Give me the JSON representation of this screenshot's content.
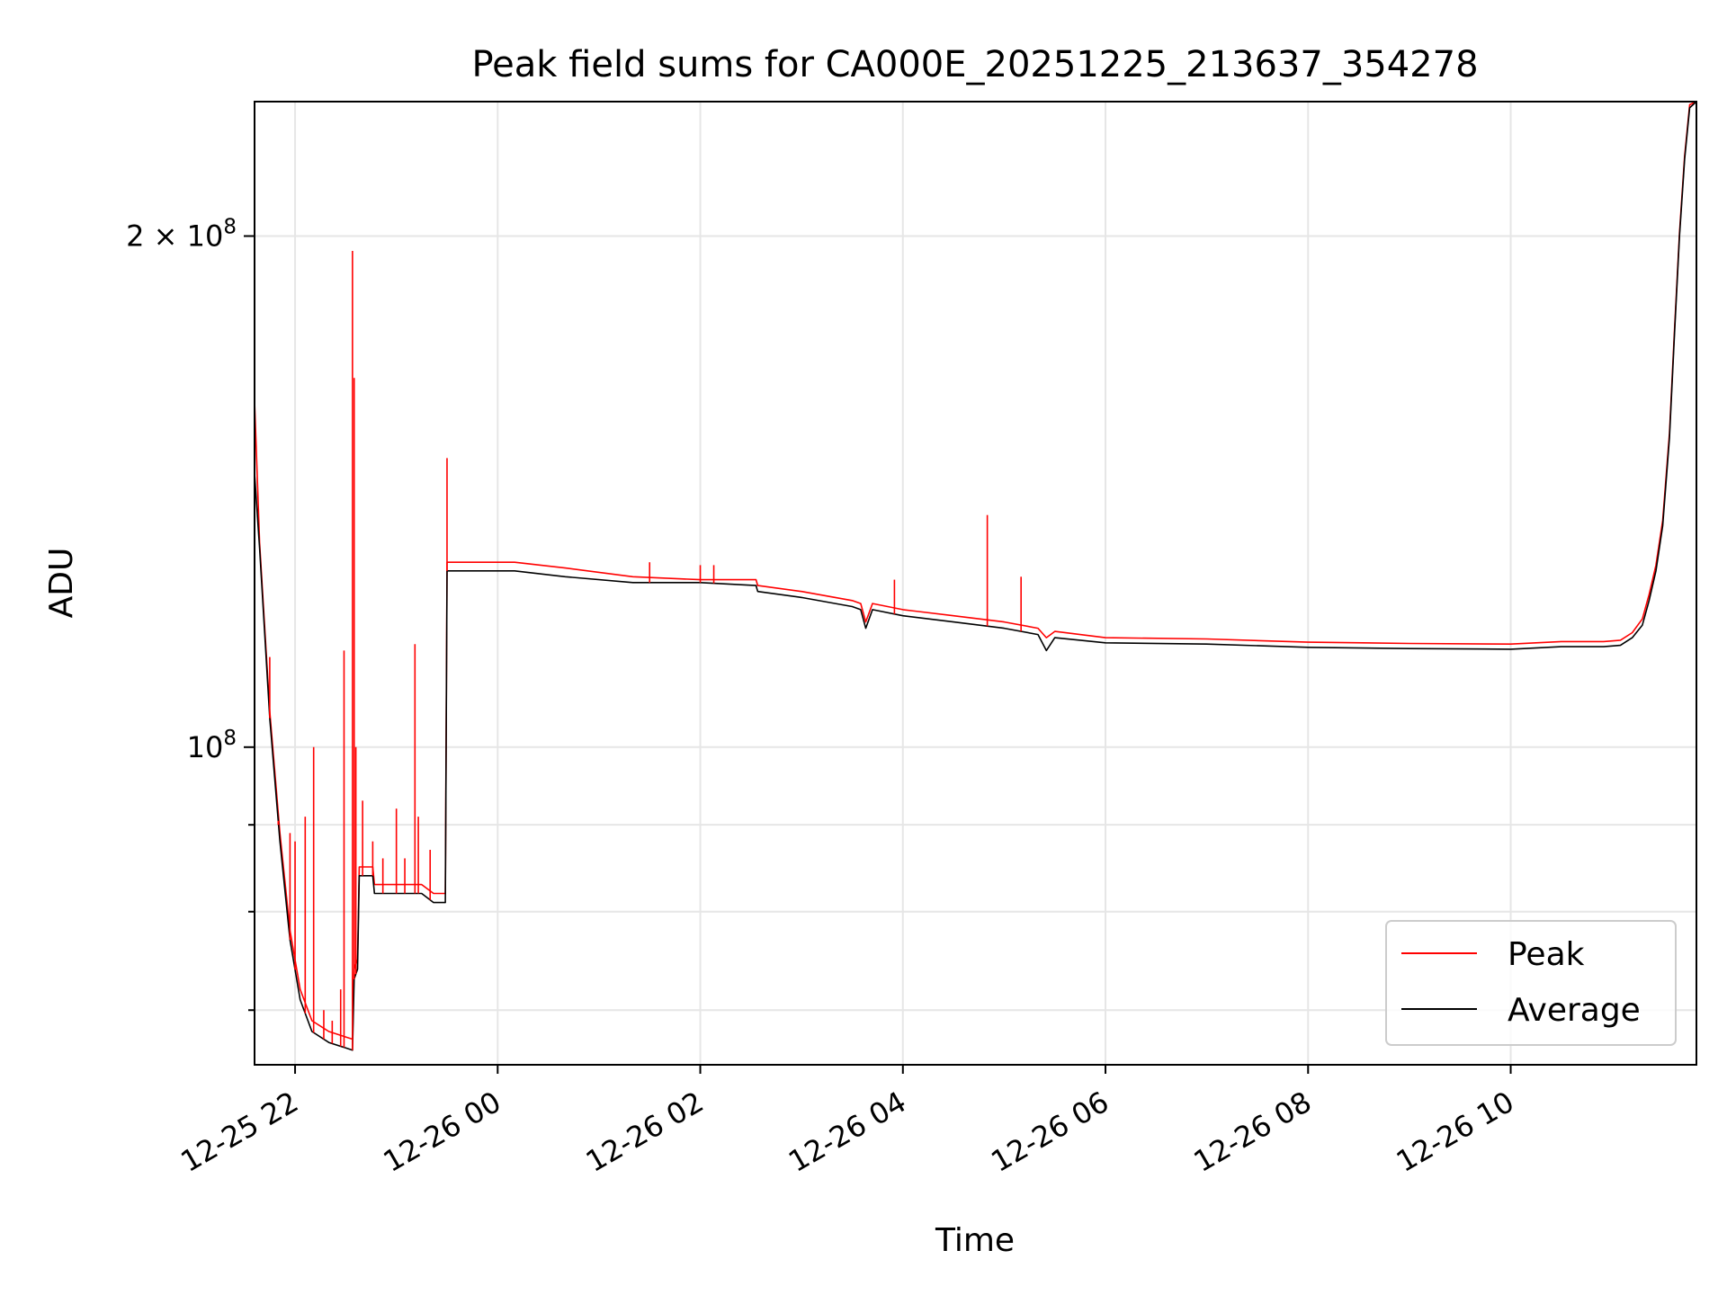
{
  "chart_data": {
    "type": "line",
    "title": "Peak field sums for CA000E_20251225_213637_354278",
    "xlabel": "Time",
    "ylabel": "ADU",
    "yscale": "log",
    "xlim": [
      "2025-12-25T21:36",
      "2025-12-26T11:50"
    ],
    "ylim": [
      65000000,
      240000000
    ],
    "x_ticks": [
      {
        "x": "2025-12-25T22:00",
        "label": "12-25 22"
      },
      {
        "x": "2025-12-26T00:00",
        "label": "12-26 00"
      },
      {
        "x": "2025-12-26T02:00",
        "label": "12-26 02"
      },
      {
        "x": "2025-12-26T04:00",
        "label": "12-26 04"
      },
      {
        "x": "2025-12-26T06:00",
        "label": "12-26 06"
      },
      {
        "x": "2025-12-26T08:00",
        "label": "12-26 08"
      },
      {
        "x": "2025-12-26T10:00",
        "label": "12-26 10"
      }
    ],
    "y_major_ticks": [
      {
        "y": 100000000,
        "label_base": "10",
        "label_exp": "8",
        "label_prefix": ""
      },
      {
        "y": 200000000,
        "label_base": "10",
        "label_exp": "8",
        "label_prefix": "2 × "
      }
    ],
    "y_minor_ticks": [
      70000000,
      80000000,
      90000000
    ],
    "grid": true,
    "legend": {
      "placement": "lower-right",
      "entries": [
        "Peak",
        "Average"
      ]
    },
    "colors": {
      "Peak": "#ff0000",
      "Average": "#000000",
      "grid": "#e6e6e6"
    },
    "series": [
      {
        "name": "Average",
        "x": [
          "2025-12-25T21:36",
          "2025-12-25T21:39",
          "2025-12-25T21:45",
          "2025-12-25T21:51",
          "2025-12-25T21:57",
          "2025-12-25T22:03",
          "2025-12-25T22:10",
          "2025-12-25T22:20",
          "2025-12-25T22:30",
          "2025-12-25T22:34",
          "2025-12-25T22:35",
          "2025-12-25T22:37",
          "2025-12-25T22:38",
          "2025-12-25T22:40",
          "2025-12-25T22:46",
          "2025-12-25T22:47",
          "2025-12-25T23:00",
          "2025-12-25T23:15",
          "2025-12-25T23:22",
          "2025-12-25T23:29",
          "2025-12-25T23:30",
          "2025-12-25T23:45",
          "2025-12-26T00:10",
          "2025-12-26T00:40",
          "2025-12-26T01:20",
          "2025-12-26T02:00",
          "2025-12-26T02:33",
          "2025-12-26T02:34",
          "2025-12-26T03:00",
          "2025-12-26T03:30",
          "2025-12-26T03:35",
          "2025-12-26T03:38",
          "2025-12-26T03:42",
          "2025-12-26T04:00",
          "2025-12-26T04:30",
          "2025-12-26T05:00",
          "2025-12-26T05:20",
          "2025-12-26T05:25",
          "2025-12-26T05:30",
          "2025-12-26T06:00",
          "2025-12-26T07:00",
          "2025-12-26T08:00",
          "2025-12-26T09:00",
          "2025-12-26T10:00",
          "2025-12-26T10:30",
          "2025-12-26T10:55",
          "2025-12-26T11:05",
          "2025-12-26T11:12",
          "2025-12-26T11:18",
          "2025-12-26T11:22",
          "2025-12-26T11:26",
          "2025-12-26T11:30",
          "2025-12-26T11:34",
          "2025-12-26T11:37",
          "2025-12-26T11:40",
          "2025-12-26T11:43",
          "2025-12-26T11:46",
          "2025-12-26T11:50"
        ],
        "y": [
          145000000,
          131000000,
          104000000,
          88000000,
          77000000,
          71000000,
          68000000,
          67000000,
          66500000,
          66300000,
          73000000,
          74000000,
          84000000,
          84000000,
          84000000,
          82000000,
          82000000,
          82000000,
          81000000,
          81000000,
          127000000,
          127000000,
          127000000,
          126000000,
          125000000,
          125000000,
          124500000,
          123500000,
          122500000,
          121000000,
          120500000,
          117500000,
          120500000,
          119500000,
          118500000,
          117500000,
          116500000,
          114000000,
          116000000,
          115200000,
          115000000,
          114500000,
          114300000,
          114200000,
          114600000,
          114600000,
          114800000,
          116000000,
          118000000,
          122000000,
          127000000,
          135000000,
          152000000,
          175000000,
          200000000,
          222000000,
          238000000,
          241000000
        ]
      },
      {
        "name": "Peak",
        "x": [
          "2025-12-25T21:36",
          "2025-12-25T21:39",
          "2025-12-25T21:45",
          "2025-12-25T21:51",
          "2025-12-25T21:57",
          "2025-12-25T22:03",
          "2025-12-25T22:10",
          "2025-12-25T22:20",
          "2025-12-25T22:30",
          "2025-12-25T22:34",
          "2025-12-25T22:35",
          "2025-12-25T22:37",
          "2025-12-25T22:38",
          "2025-12-25T22:40",
          "2025-12-25T22:46",
          "2025-12-25T22:47",
          "2025-12-25T23:00",
          "2025-12-25T23:15",
          "2025-12-25T23:22",
          "2025-12-25T23:29",
          "2025-12-25T23:30",
          "2025-12-25T23:45",
          "2025-12-26T00:10",
          "2025-12-26T00:40",
          "2025-12-26T01:20",
          "2025-12-26T02:00",
          "2025-12-26T02:33",
          "2025-12-26T02:34",
          "2025-12-26T03:00",
          "2025-12-26T03:30",
          "2025-12-26T03:35",
          "2025-12-26T03:38",
          "2025-12-26T03:42",
          "2025-12-26T04:00",
          "2025-12-26T04:30",
          "2025-12-26T05:00",
          "2025-12-26T05:20",
          "2025-12-26T05:25",
          "2025-12-26T05:30",
          "2025-12-26T06:00",
          "2025-12-26T07:00",
          "2025-12-26T08:00",
          "2025-12-26T09:00",
          "2025-12-26T10:00",
          "2025-12-26T10:30",
          "2025-12-26T10:55",
          "2025-12-26T11:05",
          "2025-12-26T11:12",
          "2025-12-26T11:18",
          "2025-12-26T11:22",
          "2025-12-26T11:26",
          "2025-12-26T11:30",
          "2025-12-26T11:34",
          "2025-12-26T11:37",
          "2025-12-26T11:40",
          "2025-12-26T11:43",
          "2025-12-26T11:46",
          "2025-12-26T11:50"
        ],
        "y": [
          160000000,
          132000000,
          105000000,
          89000000,
          78000000,
          72000000,
          69000000,
          68000000,
          67500000,
          67300000,
          74000000,
          75000000,
          85000000,
          85000000,
          85000000,
          83000000,
          83000000,
          83000000,
          82000000,
          82000000,
          128500000,
          128500000,
          128500000,
          127500000,
          126000000,
          125500000,
          125500000,
          124500000,
          123500000,
          122000000,
          121500000,
          118500000,
          121500000,
          120500000,
          119500000,
          118500000,
          117500000,
          116000000,
          117000000,
          116000000,
          115800000,
          115300000,
          115100000,
          115000000,
          115400000,
          115400000,
          115600000,
          116800000,
          119000000,
          123000000,
          128000000,
          136000000,
          153000000,
          176000000,
          201000000,
          223000000,
          239000000,
          242000000
        ]
      }
    ],
    "peak_spikes": [
      {
        "x": "2025-12-25T21:45",
        "y": 113000000
      },
      {
        "x": "2025-12-25T21:50",
        "y": 90000000
      },
      {
        "x": "2025-12-25T21:57",
        "y": 89000000
      },
      {
        "x": "2025-12-25T22:00",
        "y": 88000000
      },
      {
        "x": "2025-12-25T22:06",
        "y": 91000000
      },
      {
        "x": "2025-12-25T22:11",
        "y": 100000000
      },
      {
        "x": "2025-12-25T22:17",
        "y": 70000000
      },
      {
        "x": "2025-12-25T22:22",
        "y": 69000000
      },
      {
        "x": "2025-12-25T22:27",
        "y": 72000000
      },
      {
        "x": "2025-12-25T22:29",
        "y": 114000000
      },
      {
        "x": "2025-12-25T22:34",
        "y": 196000000
      },
      {
        "x": "2025-12-25T22:35",
        "y": 165000000
      },
      {
        "x": "2025-12-25T22:36",
        "y": 100000000
      },
      {
        "x": "2025-12-25T22:40",
        "y": 93000000
      },
      {
        "x": "2025-12-25T22:46",
        "y": 88000000
      },
      {
        "x": "2025-12-25T22:52",
        "y": 86000000
      },
      {
        "x": "2025-12-25T23:00",
        "y": 92000000
      },
      {
        "x": "2025-12-25T23:05",
        "y": 86000000
      },
      {
        "x": "2025-12-25T23:11",
        "y": 115000000
      },
      {
        "x": "2025-12-25T23:13",
        "y": 91000000
      },
      {
        "x": "2025-12-25T23:20",
        "y": 87000000
      },
      {
        "x": "2025-12-25T23:30",
        "y": 148000000
      },
      {
        "x": "2025-12-26T01:30",
        "y": 128500000
      },
      {
        "x": "2025-12-26T02:00",
        "y": 128000000
      },
      {
        "x": "2025-12-26T02:08",
        "y": 128000000
      },
      {
        "x": "2025-12-26T03:55",
        "y": 125500000
      },
      {
        "x": "2025-12-26T04:50",
        "y": 137000000
      },
      {
        "x": "2025-12-26T05:10",
        "y": 126000000
      }
    ]
  }
}
